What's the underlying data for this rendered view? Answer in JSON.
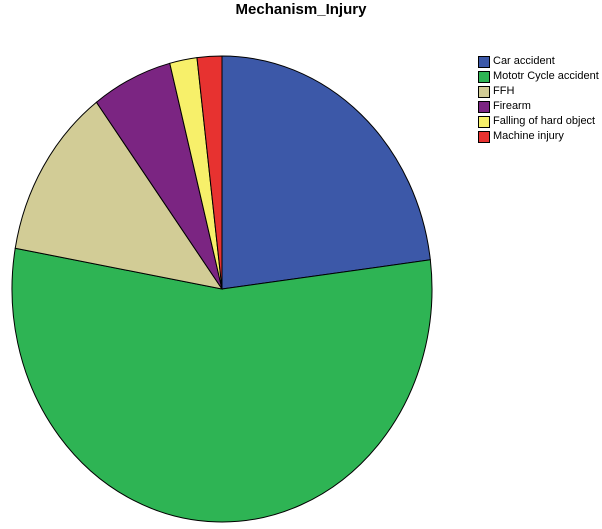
{
  "chart_data": {
    "type": "pie",
    "title": "Mechanism_Injury",
    "legend_position": "right",
    "background_color": "#ffffff",
    "outline_color": "#000000",
    "slices": [
      {
        "label": "Car accident",
        "color": "#3C58A8",
        "percent": 23.0
      },
      {
        "label": "Mototr Cycle accident",
        "color": "#2EB454",
        "percent": 54.8
      },
      {
        "label": "FFH",
        "color": "#D2CC96",
        "percent": 12.0
      },
      {
        "label": "Firearm",
        "color": "#7B2582",
        "percent": 6.2
      },
      {
        "label": "Falling of hard object",
        "color": "#F7F06A",
        "percent": 2.1
      },
      {
        "label": "Machine injury",
        "color": "#E73230",
        "percent": 1.9
      }
    ]
  }
}
